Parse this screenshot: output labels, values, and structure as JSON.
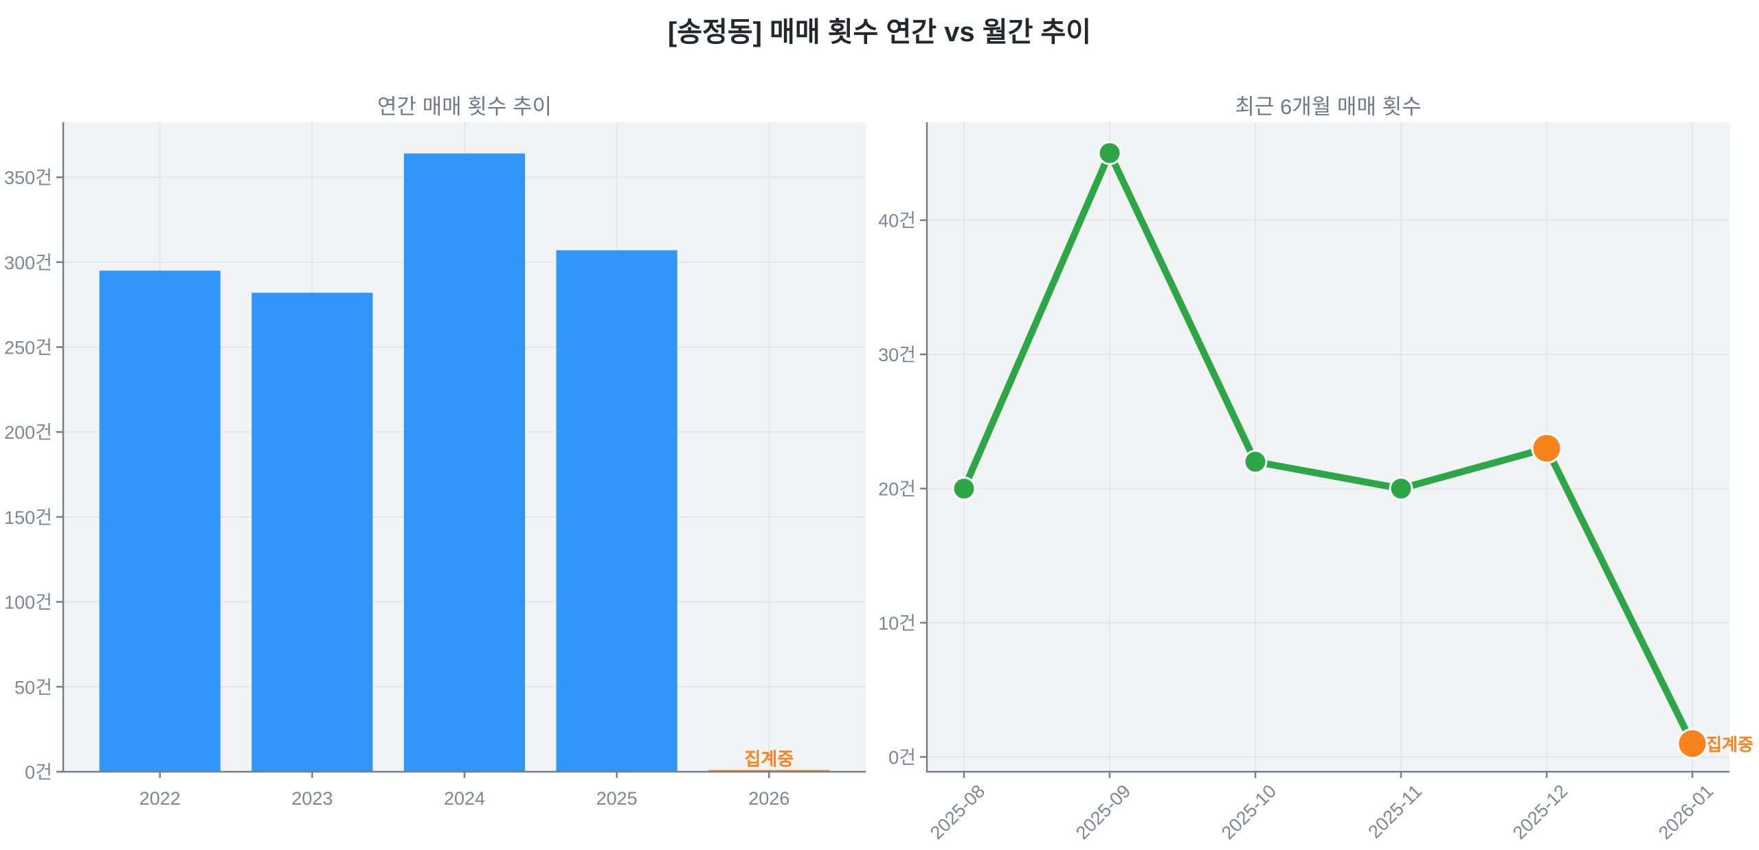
{
  "page": {
    "title": "[송정동] 매매 횟수 연간 vs 월간 추이"
  },
  "colors": {
    "bar_blue": "#3296f8",
    "line_green": "#2da646",
    "pending_orange": "#f8831d",
    "figure_background": "#ffffff",
    "plot_background": "#f2f3f4",
    "gridline": "#e4e6e9",
    "spine": "#777e8a",
    "tick_label": "#7d8693",
    "subtitle": "#6e7987",
    "main_title": "#23272e"
  },
  "chart_data": [
    {
      "id": "yearly",
      "type": "bar",
      "title": "연간 매매 횟수 추이",
      "categories": [
        "2022",
        "2023",
        "2024",
        "2025",
        "2026"
      ],
      "values": [
        295,
        282,
        364,
        307,
        1
      ],
      "unit": "건",
      "xlabel": "",
      "ylabel": "",
      "yticks": [
        0,
        50,
        100,
        150,
        200,
        250,
        300,
        350
      ],
      "ylim": [
        0,
        382.4
      ],
      "grid": true,
      "legend": null,
      "bar_color": "#3296f8",
      "highlight_index": 4,
      "highlight_color": "#f8831d",
      "annotation": {
        "text": "집계중",
        "target_index": 4
      }
    },
    {
      "id": "monthly",
      "type": "line",
      "title": "최근 6개월 매매 횟수",
      "categories": [
        "2025-08",
        "2025-09",
        "2025-10",
        "2025-11",
        "2025-12",
        "2026-01"
      ],
      "values": [
        20,
        45,
        22,
        20,
        23,
        1
      ],
      "unit": "건",
      "xlabel": "",
      "ylabel": "",
      "yticks": [
        0,
        10,
        20,
        30,
        40
      ],
      "ylim": [
        -1.1,
        47.3
      ],
      "grid": true,
      "legend": null,
      "xtick_rotation": 45,
      "line_color": "#2da646",
      "point_color": "#2da646",
      "highlight_indices": [
        4,
        5
      ],
      "highlight_color": "#f8831d",
      "annotation": {
        "text": "집계중",
        "target_index": 5
      }
    }
  ]
}
